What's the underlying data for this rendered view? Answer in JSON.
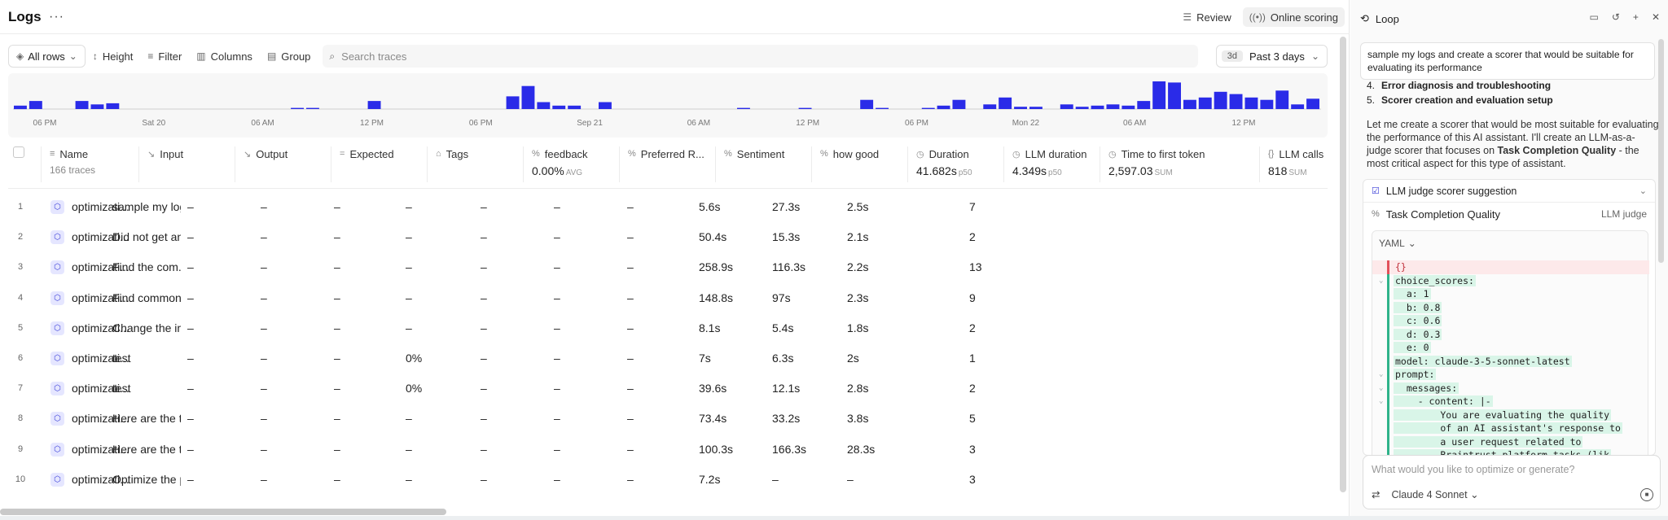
{
  "header": {
    "title": "Logs",
    "more": "···",
    "review_label": "Review",
    "online_scoring_label": "Online scoring"
  },
  "toolbar": {
    "rows_label": "All rows",
    "height_label": "Height",
    "filter_label": "Filter",
    "columns_label": "Columns",
    "group_label": "Group",
    "search_placeholder": "Search traces",
    "range_pill": "3d",
    "range_label": "Past 3 days"
  },
  "histogram": {
    "tick_labels": [
      "06 PM",
      "Sat 20",
      "06 AM",
      "12 PM",
      "06 PM",
      "Sep 21",
      "06 AM",
      "12 PM",
      "06 PM",
      "Mon 22",
      "06 AM",
      "12 PM"
    ],
    "values": [
      0.15,
      0.35,
      0,
      0,
      0.35,
      0.2,
      0.25,
      0,
      0,
      0,
      0,
      0,
      0,
      0,
      0,
      0,
      0,
      0,
      0.05,
      0.05,
      0,
      0,
      0,
      0.35,
      0,
      0,
      0,
      0,
      0,
      0,
      0,
      0,
      0.55,
      1,
      0.3,
      0.15,
      0.15,
      0,
      0.3,
      0,
      0,
      0,
      0,
      0,
      0,
      0,
      0,
      0.05,
      0,
      0,
      0,
      0.05,
      0,
      0,
      0,
      0.4,
      0.05,
      0,
      0,
      0.05,
      0.15,
      0.4,
      0,
      0.2,
      0.5,
      0.1,
      0.1,
      0,
      0.2,
      0.1,
      0.15,
      0.2,
      0.15,
      0.35,
      1.2,
      1.15,
      0.4,
      0.5,
      0.75,
      0.65,
      0.5,
      0.4,
      0.8,
      0.2,
      0.45
    ],
    "color": "#2a2be8"
  },
  "table": {
    "columns": [
      {
        "label": "Name",
        "sub": "166 traces",
        "icon": "list"
      },
      {
        "label": "Input",
        "sub": "",
        "icon": "arrow"
      },
      {
        "label": "Output",
        "sub": "",
        "icon": "arrow"
      },
      {
        "label": "Expected",
        "sub": "",
        "icon": "eq"
      },
      {
        "label": "Tags",
        "sub": "",
        "icon": "tag"
      },
      {
        "label": "feedback",
        "sub": "0.00%",
        "sub_small": "AVG",
        "icon": "pct"
      },
      {
        "label": "Preferred R...",
        "sub": "",
        "icon": "pct"
      },
      {
        "label": "Sentiment",
        "sub": "",
        "icon": "pct"
      },
      {
        "label": "how good",
        "sub": "",
        "icon": "pct"
      },
      {
        "label": "Duration",
        "sub": "41.682s",
        "sub_small": "p50",
        "icon": "clock"
      },
      {
        "label": "LLM duration",
        "sub": "4.349s",
        "sub_small": "p50",
        "icon": "clock"
      },
      {
        "label": "Time to first token",
        "sub": "2,597.03",
        "sub_small": "SUM",
        "icon": "clock"
      },
      {
        "label": "LLM calls",
        "sub": "818",
        "sub_small": "SUM",
        "icon": "braces"
      }
    ],
    "rows": [
      {
        "n": "1",
        "name": "optimizati...",
        "input": "sample my log...",
        "output": "–",
        "expected": "–",
        "tags": "–",
        "feedback": "–",
        "pref": "–",
        "sent": "–",
        "good": "–",
        "dur": "5.6s",
        "llm": "27.3s",
        "ttft": "2.5s",
        "calls": "7"
      },
      {
        "n": "2",
        "name": "optimizati...",
        "input": "Did not get an...",
        "output": "–",
        "expected": "–",
        "tags": "–",
        "feedback": "–",
        "pref": "–",
        "sent": "–",
        "good": "–",
        "dur": "50.4s",
        "llm": "15.3s",
        "ttft": "2.1s",
        "calls": "2"
      },
      {
        "n": "3",
        "name": "optimizati...",
        "input": "Find the com...",
        "output": "–",
        "expected": "–",
        "tags": "–",
        "feedback": "–",
        "pref": "–",
        "sent": "–",
        "good": "–",
        "dur": "258.9s",
        "llm": "116.3s",
        "ttft": "2.2s",
        "calls": "13"
      },
      {
        "n": "4",
        "name": "optimizati...",
        "input": "Find common ...",
        "output": "–",
        "expected": "–",
        "tags": "–",
        "feedback": "–",
        "pref": "–",
        "sent": "–",
        "good": "–",
        "dur": "148.8s",
        "llm": "97s",
        "ttft": "2.3s",
        "calls": "9"
      },
      {
        "n": "5",
        "name": "optimizati...",
        "input": "Change the im...",
        "output": "–",
        "expected": "–",
        "tags": "–",
        "feedback": "–",
        "pref": "–",
        "sent": "–",
        "good": "–",
        "dur": "8.1s",
        "llm": "5.4s",
        "ttft": "1.8s",
        "calls": "2"
      },
      {
        "n": "6",
        "name": "optimizati...",
        "input": "test",
        "output": "–",
        "expected": "–",
        "tags": "–",
        "feedback": "0%",
        "pref": "–",
        "sent": "–",
        "good": "–",
        "dur": "7s",
        "llm": "6.3s",
        "ttft": "2s",
        "calls": "1"
      },
      {
        "n": "7",
        "name": "optimizati...",
        "input": "test",
        "output": "–",
        "expected": "–",
        "tags": "–",
        "feedback": "0%",
        "pref": "–",
        "sent": "–",
        "good": "–",
        "dur": "39.6s",
        "llm": "12.1s",
        "ttft": "2.8s",
        "calls": "2"
      },
      {
        "n": "8",
        "name": "optimizati...",
        "input": "Here are the t...",
        "output": "–",
        "expected": "–",
        "tags": "–",
        "feedback": "–",
        "pref": "–",
        "sent": "–",
        "good": "–",
        "dur": "73.4s",
        "llm": "33.2s",
        "ttft": "3.8s",
        "calls": "5"
      },
      {
        "n": "9",
        "name": "optimizati...",
        "input": "Here are the t...",
        "output": "–",
        "expected": "–",
        "tags": "–",
        "feedback": "–",
        "pref": "–",
        "sent": "–",
        "good": "–",
        "dur": "100.3s",
        "llm": "166.3s",
        "ttft": "28.3s",
        "calls": "3"
      },
      {
        "n": "10",
        "name": "optimizati...",
        "input": "Optimize the p...",
        "output": "–",
        "expected": "–",
        "tags": "–",
        "feedback": "–",
        "pref": "–",
        "sent": "–",
        "good": "–",
        "dur": "7.2s",
        "llm": "–",
        "ttft": "–",
        "calls": "3"
      }
    ]
  },
  "loop": {
    "title": "Loop",
    "user_message": "sample my logs and create a scorer that would be suitable for evaluating its performance",
    "steps": [
      {
        "num": "4.",
        "text": "Error diagnosis and troubleshooting"
      },
      {
        "num": "5.",
        "text": "Scorer creation and evaluation setup"
      }
    ],
    "assistant_pre": "Let me create a scorer that would be most suitable for evaluating the performance of this AI assistant. I'll create an LLM-as-a-judge scorer that focuses on ",
    "assistant_bold": "Task Completion Quality",
    "assistant_post": " - the most critical aspect for this type of assistant.",
    "card_title": "LLM judge scorer suggestion",
    "scorer_name": "Task Completion Quality",
    "scorer_type": "LLM judge",
    "yaml_label": "YAML",
    "code_lines": [
      {
        "t": "{}",
        "del": true
      },
      {
        "t": "choice_scores:",
        "gut": "⌄"
      },
      {
        "t": "  a: 1"
      },
      {
        "t": "  b: 0.8"
      },
      {
        "t": "  c: 0.6"
      },
      {
        "t": "  d: 0.3"
      },
      {
        "t": "  e: 0"
      },
      {
        "t": "model: claude-3-5-sonnet-latest"
      },
      {
        "t": "prompt:",
        "gut": "⌄"
      },
      {
        "t": "  messages:",
        "gut": "⌄"
      },
      {
        "t": "    - content: |-",
        "gut": "⌄"
      },
      {
        "t": "        You are evaluating the quality"
      },
      {
        "t": "        of an AI assistant's response to"
      },
      {
        "t": "        a user request related to"
      },
      {
        "t": "        Braintrust platform tasks (lik"
      }
    ],
    "composer_placeholder": "What would you like to optimize or generate?",
    "model_label": "Claude 4 Sonnet"
  }
}
